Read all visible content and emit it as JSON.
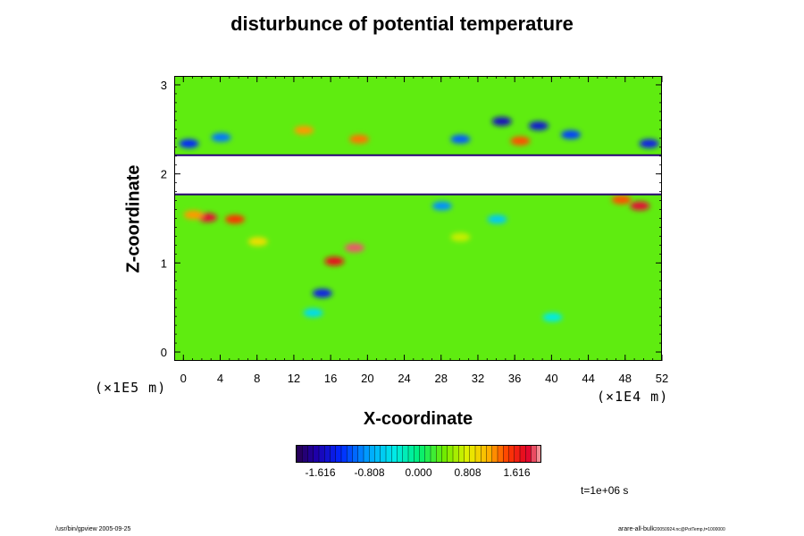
{
  "chart_data": {
    "type": "heatmap",
    "title": "disturbunce of potential temperature",
    "xlabel": "X-coordinate",
    "ylabel": "Z-coordinate",
    "x_unit": "(×1E4 m)",
    "y_unit": "(×1E5 m)",
    "xlim": [
      -1,
      52
    ],
    "ylim": [
      -0.1,
      3.1
    ],
    "x_ticks": [
      0,
      4,
      8,
      12,
      16,
      20,
      24,
      28,
      32,
      36,
      40,
      44,
      48,
      52
    ],
    "y_ticks": [
      0,
      1,
      2,
      3
    ],
    "colorbar": {
      "min": -2.02,
      "max": 2.02,
      "tick_values": [
        -1.616,
        -0.808,
        0.0,
        0.808,
        1.616
      ],
      "tick_labels": [
        "-1.616",
        "-0.808",
        "0.000",
        "0.808",
        "1.616"
      ]
    },
    "background_value": 0.35,
    "saturated_band": {
      "z_min": 1.78,
      "z_max": 2.22
    },
    "features": [
      {
        "x": 2.5,
        "z": 1.52,
        "value": 1.8
      },
      {
        "x": 5.5,
        "z": 1.5,
        "value": 1.5
      },
      {
        "x": 1.0,
        "z": 1.55,
        "value": 1.2
      },
      {
        "x": 49.5,
        "z": 1.65,
        "value": 1.8
      },
      {
        "x": 47.5,
        "z": 1.72,
        "value": 1.4
      },
      {
        "x": 18.5,
        "z": 1.18,
        "value": 1.9
      },
      {
        "x": 16.3,
        "z": 1.03,
        "value": 1.7
      },
      {
        "x": 15.0,
        "z": 0.67,
        "value": -1.4
      },
      {
        "x": 34.5,
        "z": 2.6,
        "value": -1.6
      },
      {
        "x": 38.5,
        "z": 2.55,
        "value": -1.5
      },
      {
        "x": 42.0,
        "z": 2.45,
        "value": -1.2
      },
      {
        "x": 30.0,
        "z": 2.4,
        "value": -1.1
      },
      {
        "x": 36.5,
        "z": 2.38,
        "value": 1.4
      },
      {
        "x": 19.0,
        "z": 2.4,
        "value": 1.3
      },
      {
        "x": 0.5,
        "z": 2.35,
        "value": -1.3
      },
      {
        "x": 4.0,
        "z": 2.42,
        "value": -1.0
      },
      {
        "x": 50.5,
        "z": 2.35,
        "value": -1.4
      },
      {
        "x": 13.0,
        "z": 2.5,
        "value": 1.2
      },
      {
        "x": 28.0,
        "z": 1.65,
        "value": -0.9
      },
      {
        "x": 34.0,
        "z": 1.5,
        "value": -0.6
      },
      {
        "x": 14.0,
        "z": 0.45,
        "value": -0.5
      },
      {
        "x": 40.0,
        "z": 0.4,
        "value": -0.4
      },
      {
        "x": 8.0,
        "z": 1.25,
        "value": 0.9
      },
      {
        "x": 30.0,
        "z": 1.3,
        "value": 0.7
      }
    ]
  },
  "time_label": "t=1e+06 s",
  "footer": {
    "left": "/usr/bin/gpview 2005-09-25",
    "right_main": "arare-all-bulk",
    "right_small": "20050924.nc@PotTemp,t=1000000"
  },
  "colors": {
    "background": "#ffffff",
    "axis": "#000000",
    "saturated": "#ffffff"
  }
}
